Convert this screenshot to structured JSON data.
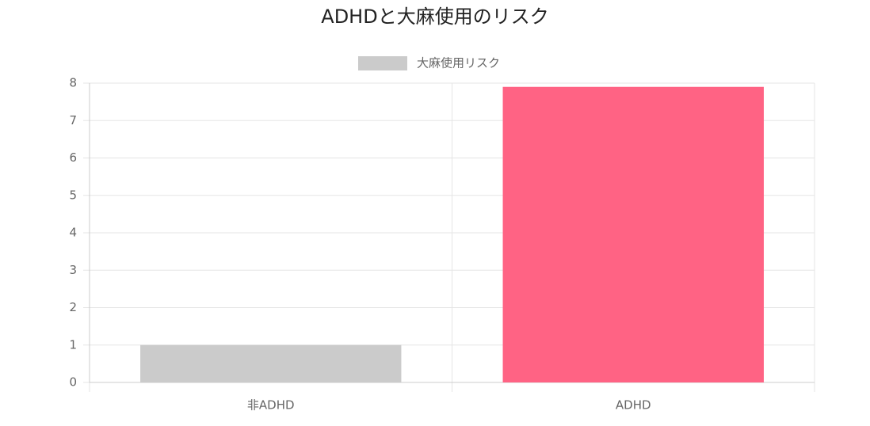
{
  "chart_data": {
    "type": "bar",
    "title": "ADHDと大麻使用のリスク",
    "categories": [
      "非ADHD",
      "ADHD"
    ],
    "series": [
      {
        "name": "大麻使用リスク",
        "colors": [
          "#cbcbcb",
          "#ff6384"
        ],
        "values": [
          1,
          7.9
        ]
      }
    ],
    "ylim": [
      0,
      8
    ],
    "yticks": [
      0,
      1,
      2,
      3,
      4,
      5,
      6,
      7,
      8
    ],
    "grid": true,
    "legend": "top"
  }
}
